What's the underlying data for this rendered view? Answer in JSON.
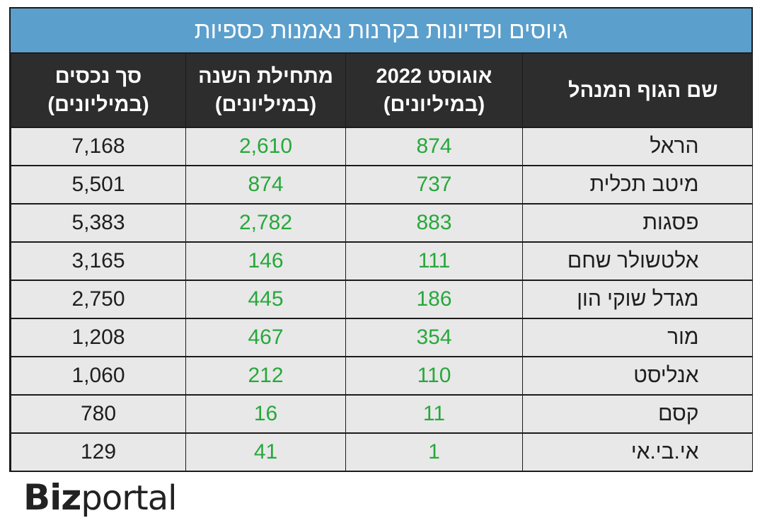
{
  "title": "גיוסים ופדיונות בקרנות נאמנות כספיות",
  "headers": {
    "name": "שם הגוף המנהל",
    "aug_line1": "אוגוסט 2022",
    "aug_line2": "(במיליונים)",
    "ytd_line1": "מתחילת השנה",
    "ytd_line2": "(במיליונים)",
    "total_line1": "סך נכסים",
    "total_line2": "(במיליונים)"
  },
  "rows": [
    {
      "name": "הראל",
      "aug": "874",
      "ytd": "2,610",
      "total": "7,168"
    },
    {
      "name": "מיטב תכלית",
      "aug": "737",
      "ytd": "874",
      "total": "5,501"
    },
    {
      "name": "פסגות",
      "aug": "883",
      "ytd": "2,782",
      "total": "5,383"
    },
    {
      "name": "אלטשולר שחם",
      "aug": "111",
      "ytd": "146",
      "total": "3,165"
    },
    {
      "name": "מגדל שוקי הון",
      "aug": "186",
      "ytd": "445",
      "total": "2,750"
    },
    {
      "name": "מור",
      "aug": "354",
      "ytd": "467",
      "total": "1,208"
    },
    {
      "name": "אנליסט",
      "aug": "110",
      "ytd": "212",
      "total": "1,060"
    },
    {
      "name": "קסם",
      "aug": "11",
      "ytd": "16",
      "total": "780"
    },
    {
      "name": "אי.בי.אי",
      "aug": "1",
      "ytd": "41",
      "total": "129"
    }
  ],
  "logo": {
    "biz": "Biz",
    "portal": "portal"
  },
  "colors": {
    "title_bg": "#5b9fcd",
    "header_bg": "#2d2d2d",
    "row_bg": "#e8e8e8",
    "positive": "#27a83b"
  }
}
